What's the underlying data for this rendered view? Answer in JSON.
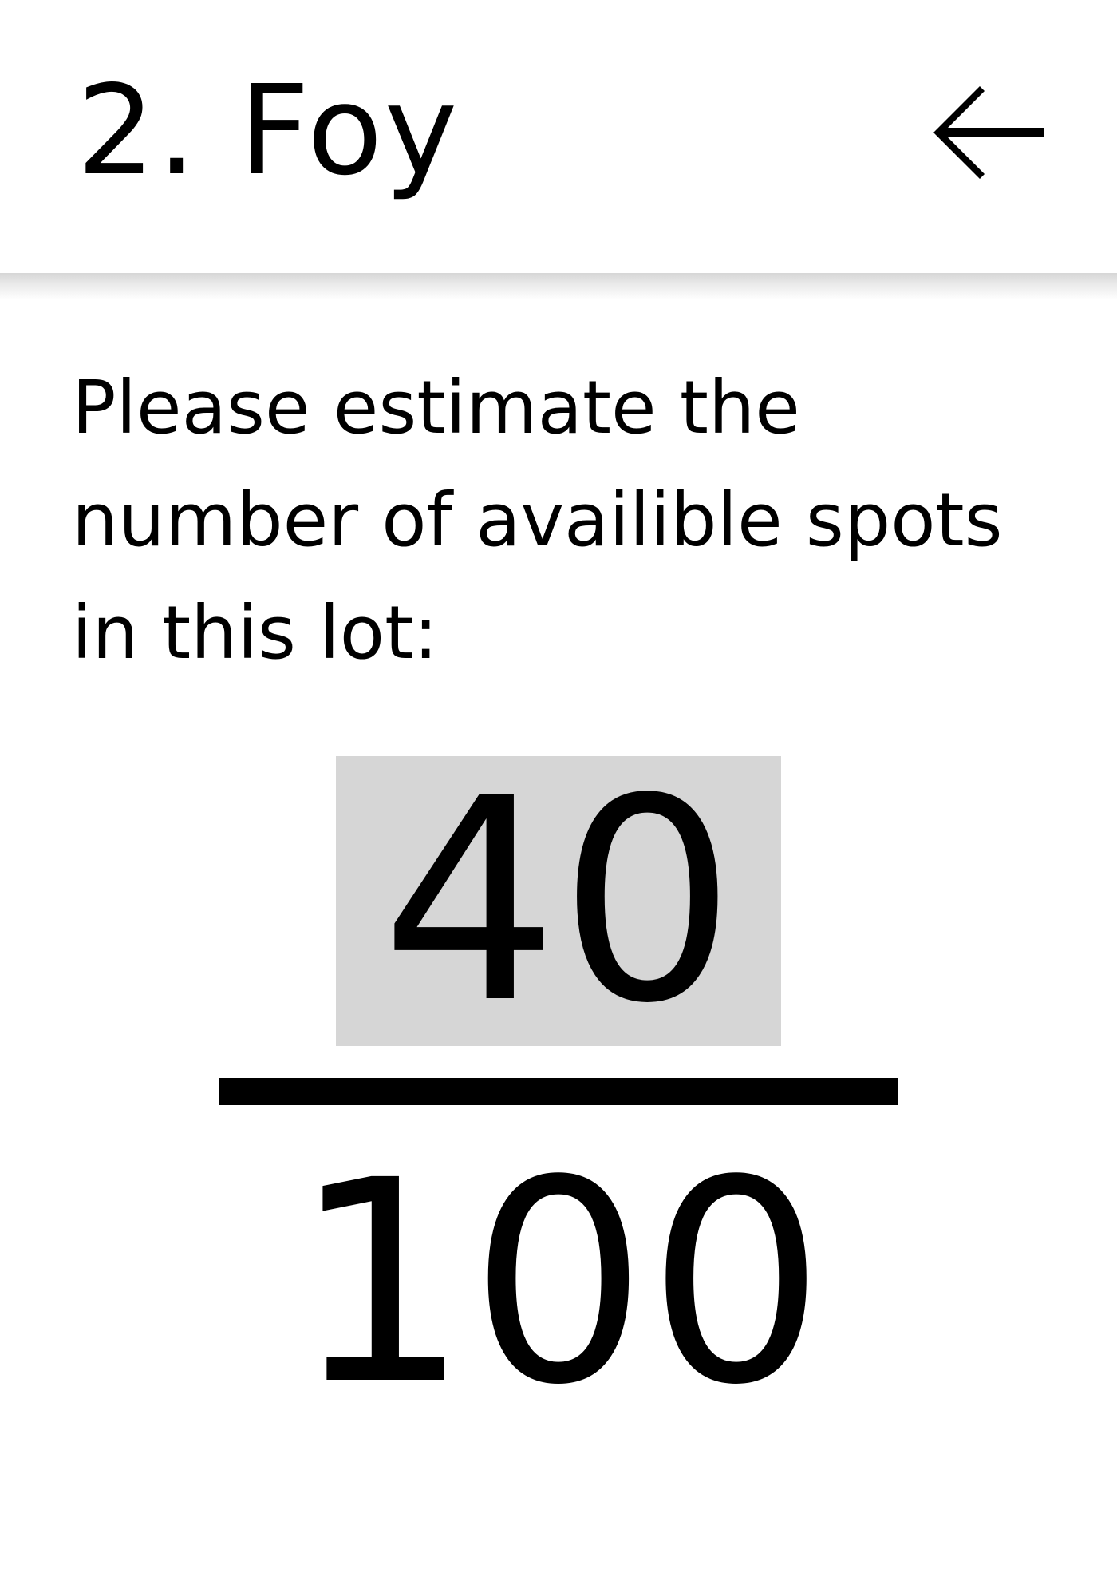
{
  "header": {
    "title": "2. Foy",
    "back_icon": "arrow-left-icon"
  },
  "prompt": "Please estimate the number of availible spots in this lot:",
  "estimate": {
    "value": "40",
    "max": "100",
    "input_background": "#d6d6d6"
  }
}
